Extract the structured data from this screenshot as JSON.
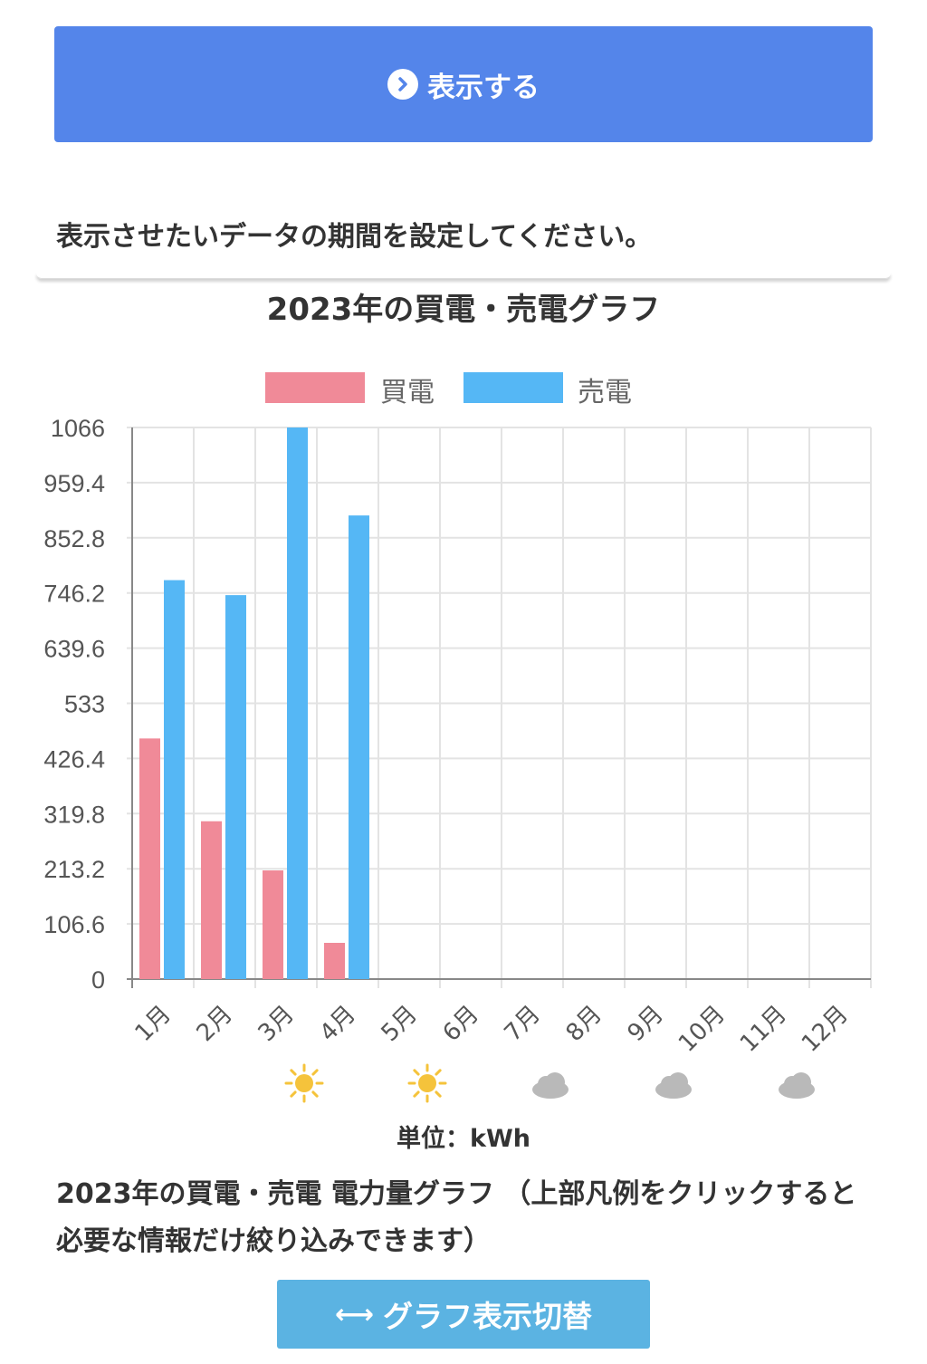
{
  "show_button": {
    "label": "表示する"
  },
  "instruction": "表示させたいデータの期間を設定してください。",
  "chart_data": {
    "type": "bar",
    "title": "2023年の買電・売電グラフ",
    "categories": [
      "1月",
      "2月",
      "3月",
      "4月",
      "5月",
      "6月",
      "7月",
      "8月",
      "9月",
      "10月",
      "11月",
      "12月"
    ],
    "series": [
      {
        "name": "買電",
        "color": "#f08a98",
        "values": [
          465,
          305,
          210,
          70,
          0,
          0,
          0,
          0,
          0,
          0,
          0,
          0
        ]
      },
      {
        "name": "売電",
        "color": "#55b7f5",
        "values": [
          771,
          742,
          1066,
          896,
          0,
          0,
          0,
          0,
          0,
          0,
          0,
          0
        ]
      }
    ],
    "y_ticks": [
      "1066",
      "959.4",
      "852.8",
      "746.2",
      "639.6",
      "533",
      "426.4",
      "319.8",
      "213.2",
      "106.6",
      "0"
    ],
    "ylim": [
      0,
      1066
    ],
    "xlabel": "",
    "ylabel": "",
    "grid": true,
    "legend": "top-center"
  },
  "weather": [
    {
      "month": "3月",
      "icon": "sun-icon",
      "color": "#f5c33b"
    },
    {
      "month": "5月",
      "icon": "sun-icon",
      "color": "#f5c33b"
    },
    {
      "month": "7月",
      "icon": "cloud-icon",
      "color": "#b9b9b9"
    },
    {
      "month": "9月",
      "icon": "cloud-icon",
      "color": "#b9b9b9"
    },
    {
      "month": "11月",
      "icon": "cloud-icon",
      "color": "#b9b9b9"
    }
  ],
  "unit_label": "単位：kWh",
  "caption": "2023年の買電・売電 電力量グラフ （上部凡例をクリックすると必要な情報だけ絞り込みできます）",
  "switch_button": {
    "label": "グラフ表示切替"
  }
}
